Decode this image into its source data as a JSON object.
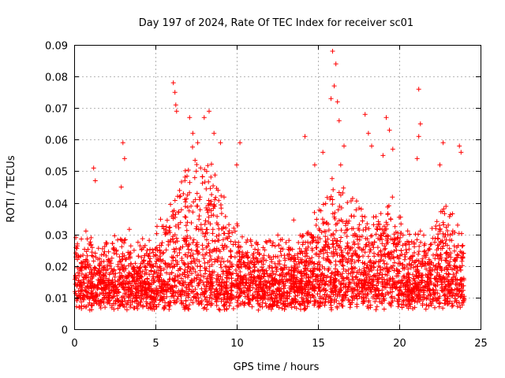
{
  "chart_data": {
    "type": "scatter",
    "title": "Day 197 of 2024, Rate Of TEC Index for receiver sc01",
    "xlabel": "GPS time / hours",
    "ylabel": "ROTI / TECUs",
    "xlim": [
      0,
      25
    ],
    "ylim": [
      0,
      0.09
    ],
    "xticks": [
      0,
      5,
      10,
      15,
      20,
      25
    ],
    "xtick_labels": [
      "0",
      "5",
      "10",
      "15",
      "20",
      "25"
    ],
    "yticks": [
      0,
      0.01,
      0.02,
      0.03,
      0.04,
      0.05,
      0.06,
      0.07,
      0.08,
      0.09
    ],
    "ytick_labels": [
      "0",
      "0.01",
      "0.02",
      "0.03",
      "0.04",
      "0.05",
      "0.06",
      "0.07",
      "0.08",
      "0.09"
    ],
    "grid": true,
    "marker": "plus",
    "color": "#ff0000",
    "x_data_range": [
      0,
      24
    ],
    "series": [
      {
        "name": "sc01",
        "points": [
          [
            0.1,
            0.029
          ],
          [
            0.2,
            0.027
          ],
          [
            1.2,
            0.051
          ],
          [
            1.3,
            0.047
          ],
          [
            3.0,
            0.059
          ],
          [
            3.1,
            0.054
          ],
          [
            2.9,
            0.045
          ],
          [
            6.1,
            0.078
          ],
          [
            6.2,
            0.075
          ],
          [
            6.25,
            0.071
          ],
          [
            6.3,
            0.069
          ],
          [
            7.1,
            0.067
          ],
          [
            7.3,
            0.062
          ],
          [
            7.6,
            0.059
          ],
          [
            8.0,
            0.067
          ],
          [
            8.3,
            0.069
          ],
          [
            8.6,
            0.062
          ],
          [
            9.0,
            0.059
          ],
          [
            10.2,
            0.059
          ],
          [
            10.0,
            0.052
          ],
          [
            14.2,
            0.061
          ],
          [
            14.8,
            0.052
          ],
          [
            15.3,
            0.056
          ],
          [
            15.9,
            0.088
          ],
          [
            16.1,
            0.084
          ],
          [
            16.0,
            0.077
          ],
          [
            15.8,
            0.073
          ],
          [
            16.2,
            0.072
          ],
          [
            16.3,
            0.066
          ],
          [
            16.6,
            0.058
          ],
          [
            16.4,
            0.052
          ],
          [
            17.9,
            0.068
          ],
          [
            18.1,
            0.062
          ],
          [
            18.3,
            0.058
          ],
          [
            19.2,
            0.067
          ],
          [
            19.4,
            0.063
          ],
          [
            19.6,
            0.057
          ],
          [
            19.0,
            0.055
          ],
          [
            21.2,
            0.076
          ],
          [
            21.3,
            0.065
          ],
          [
            21.2,
            0.061
          ],
          [
            21.1,
            0.054
          ],
          [
            22.7,
            0.059
          ],
          [
            23.7,
            0.058
          ],
          [
            23.8,
            0.056
          ],
          [
            22.5,
            0.052
          ]
        ]
      }
    ]
  }
}
